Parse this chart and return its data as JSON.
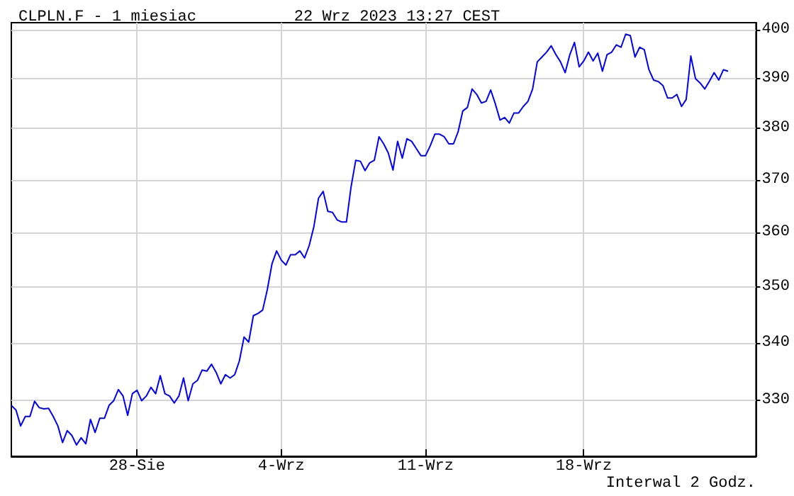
{
  "chart_data": {
    "type": "line",
    "title": "CLPLN.F - 1 miesiac",
    "subtitle": "22 Wrz 2023 13:27 CEST",
    "annotations": [
      "Interwal 2 Godz."
    ],
    "log": true,
    "grid": true,
    "marker": "none",
    "categories": [
      null,
      null,
      null,
      null,
      null,
      null,
      null,
      null,
      null,
      null,
      null,
      null,
      null,
      null,
      null,
      null,
      null,
      null,
      null,
      null,
      null,
      null,
      null,
      null,
      null,
      null,
      null,
      "28-Sie",
      null,
      null,
      null,
      null,
      null,
      null,
      null,
      null,
      null,
      null,
      null,
      null,
      null,
      null,
      null,
      null,
      null,
      null,
      null,
      null,
      null,
      null,
      null,
      null,
      null,
      null,
      null,
      null,
      null,
      null,
      "4-Wrz",
      null,
      null,
      null,
      null,
      null,
      null,
      null,
      null,
      null,
      null,
      null,
      null,
      null,
      null,
      null,
      null,
      null,
      null,
      null,
      null,
      null,
      null,
      null,
      null,
      null,
      null,
      null,
      null,
      null,
      null,
      "11-Wrz",
      null,
      null,
      null,
      null,
      null,
      null,
      null,
      null,
      null,
      null,
      null,
      null,
      null,
      null,
      null,
      null,
      null,
      null,
      null,
      null,
      null,
      null,
      null,
      null,
      null,
      null,
      null,
      null,
      null,
      null,
      null,
      null,
      null,
      "18-Wrz",
      null,
      null,
      null,
      null,
      null,
      null,
      null,
      null,
      null,
      null,
      null,
      null,
      null,
      null,
      null,
      null,
      null,
      null,
      null,
      null,
      null,
      null,
      null,
      null,
      null,
      null,
      null,
      null,
      null,
      null,
      null,
      null,
      null,
      null,
      null,
      null,
      null
    ],
    "ylim": [
      320.5,
      401.5
    ],
    "yticks": [
      330,
      340,
      350,
      360,
      370,
      380,
      390,
      400
    ],
    "series": [
      {
        "color": "#0000ff",
        "values": [
          329.1,
          328.3,
          325.6,
          327.2,
          327.2,
          329.8,
          328.7,
          328.5,
          328.6,
          327.2,
          325.6,
          322.8,
          324.8,
          324,
          322.4,
          323.6,
          322.6,
          326.7,
          324.5,
          326.9,
          326.9,
          329.1,
          329.9,
          331.8,
          330.7,
          327.4,
          331.1,
          331.7,
          329.9,
          330.7,
          332.2,
          331.1,
          334.2,
          331.1,
          330.7,
          329.5,
          330.7,
          333.8,
          329.9,
          332.8,
          333.4,
          335.2,
          335,
          336.2,
          334.8,
          332.8,
          334.4,
          333.8,
          334.4,
          336.8,
          341,
          340.1,
          344.8,
          345.2,
          345.8,
          349.5,
          354.2,
          356.6,
          354.9,
          354,
          355.9,
          355.9,
          356.6,
          355.3,
          357.6,
          361.1,
          366.5,
          367.8,
          364,
          363.8,
          362.4,
          362,
          362,
          368.7,
          373.8,
          373.6,
          371.8,
          373.3,
          373.8,
          378.4,
          377,
          375.2,
          371.9,
          377.5,
          374.2,
          378,
          377.5,
          376.1,
          374.7,
          374.7,
          376.6,
          378.9,
          378.9,
          378.4,
          377,
          377,
          379.4,
          383.5,
          384.2,
          387.9,
          386.8,
          385.1,
          385.4,
          387.7,
          384.9,
          381.7,
          382.2,
          381.1,
          383.1,
          383.1,
          384.4,
          385.4,
          387.9,
          393.4,
          394.4,
          395.4,
          396.7,
          394.9,
          393.4,
          391.2,
          394.9,
          397.4,
          392.4,
          393.6,
          395.4,
          393.6,
          395.2,
          391.5,
          394.9,
          395.4,
          396.9,
          396.4,
          399.1,
          398.8,
          394.4,
          396.4,
          395.9,
          391.8,
          389.7,
          389.4,
          388.6,
          386.1,
          386.1,
          386.8,
          384.4,
          385.8,
          394.6,
          390,
          389.1,
          387.9,
          389.5,
          391.2,
          389.7,
          391.8,
          391.5,
          null,
          null,
          null,
          null,
          null,
          null
        ]
      }
    ]
  }
}
